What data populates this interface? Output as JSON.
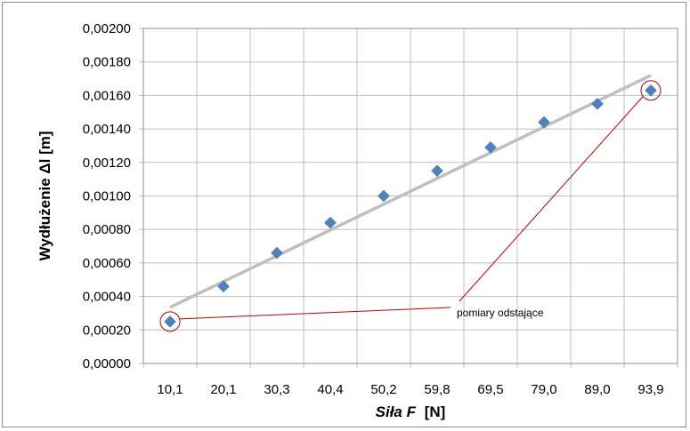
{
  "chart_data": {
    "type": "scatter",
    "categories": [
      "10,1",
      "20,1",
      "30,3",
      "40,4",
      "50,2",
      "59,8",
      "69,5",
      "79,0",
      "89,0",
      "93,9"
    ],
    "values": [
      0.00025,
      0.00046,
      0.00066,
      0.00084,
      0.001,
      0.00115,
      0.00129,
      0.00144,
      0.00155,
      0.00163
    ],
    "y_ticks": [
      "0,00000",
      "0,00020",
      "0,00040",
      "0,00060",
      "0,00080",
      "0,00100",
      "0,00120",
      "0,00140",
      "0,00160",
      "0,00180",
      "0,00200"
    ],
    "ylim": [
      0,
      0.002
    ],
    "xlabel_italic": "Siła F",
    "xlabel_unit": "[N]",
    "ylabel": "Wydłużenie Δl [m]",
    "trendline": {
      "start": 0.000335,
      "end": 0.00172,
      "color": "#bfbfbf"
    },
    "annotation": {
      "text": "pomiary odstające",
      "targets": [
        0,
        9
      ],
      "color": "#c00000"
    },
    "grid": "vertical-and-horizontal",
    "legend": "none",
    "marker_color": "#4f81bd"
  }
}
